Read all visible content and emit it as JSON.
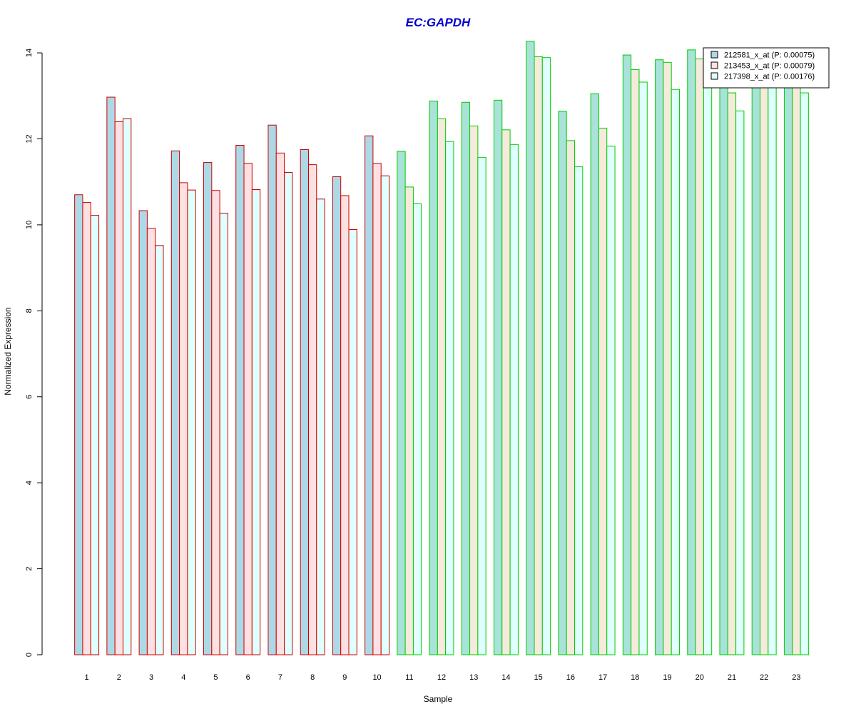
{
  "chart_data": {
    "type": "bar",
    "title": "EC:GAPDH",
    "title_color": "#0000cc",
    "xlabel": "Sample",
    "ylabel": "Normalized Expression",
    "ylim": [
      0,
      14.25
    ],
    "yticks": [
      0,
      2,
      4,
      6,
      8,
      10,
      12,
      14
    ],
    "grid": false,
    "legend_position": "top-right",
    "categories": [
      "1",
      "2",
      "3",
      "4",
      "5",
      "6",
      "7",
      "8",
      "9",
      "10",
      "11",
      "12",
      "13",
      "14",
      "15",
      "16",
      "17",
      "18",
      "19",
      "20",
      "21",
      "22",
      "23"
    ],
    "group_border_colors": [
      "#cc0000",
      "#cc0000",
      "#cc0000",
      "#cc0000",
      "#cc0000",
      "#cc0000",
      "#cc0000",
      "#cc0000",
      "#cc0000",
      "#cc0000",
      "#00cc00",
      "#00cc00",
      "#00cc00",
      "#00cc00",
      "#00cc00",
      "#00cc00",
      "#00cc00",
      "#00cc00",
      "#00cc00",
      "#00cc00",
      "#00cc00",
      "#00cc00",
      "#00cc00"
    ],
    "series": [
      {
        "name": "212581_x_at (P: 0.00075)",
        "fill_group1": "#add8e6",
        "fill_group2": "#a8e2d8",
        "legend_fill": "#add8e6",
        "values": [
          10.7,
          12.97,
          10.33,
          11.72,
          11.45,
          11.85,
          12.32,
          11.75,
          11.12,
          12.07,
          11.71,
          12.88,
          12.85,
          12.9,
          14.27,
          12.64,
          13.05,
          13.95,
          13.84,
          14.07,
          13.3,
          13.35,
          13.8
        ]
      },
      {
        "name": "213453_x_at (P: 0.00079)",
        "fill_group1": "#ffe0e0",
        "fill_group2": "#f5eadc",
        "legend_fill": "#ffe0e0",
        "values": [
          10.52,
          12.4,
          9.92,
          10.98,
          10.8,
          11.43,
          11.67,
          11.4,
          10.68,
          11.43,
          10.88,
          12.47,
          12.3,
          12.21,
          13.91,
          11.96,
          12.25,
          13.61,
          13.78,
          13.86,
          13.07,
          13.3,
          13.4
        ]
      },
      {
        "name": "217398_x_at (P: 0.00176)",
        "fill_group1": "#e0ffff",
        "fill_group2": "#e0ffff",
        "legend_fill": "#e0ffff",
        "values": [
          10.22,
          12.47,
          9.52,
          10.81,
          10.27,
          10.82,
          11.22,
          10.6,
          9.89,
          11.14,
          10.49,
          11.94,
          11.57,
          11.87,
          13.89,
          11.35,
          11.83,
          13.32,
          13.15,
          13.2,
          12.65,
          13.25,
          13.07
        ]
      }
    ]
  }
}
